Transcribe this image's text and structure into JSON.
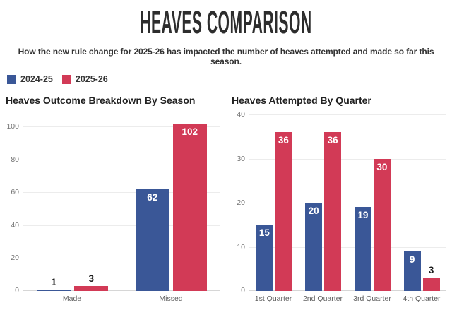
{
  "header": {
    "title": "HEAVES COMPARISON",
    "subtitle": "How the new rule change for 2025-26 has impacted the number of heaves attempted and made so far this season."
  },
  "legend": {
    "items": [
      {
        "label": "2024-25",
        "color": "#3a5797"
      },
      {
        "label": "2025-26",
        "color": "#d23a56"
      }
    ]
  },
  "chart_data": [
    {
      "type": "bar",
      "title": "Heaves Outcome Breakdown By Season",
      "categories": [
        "Made",
        "Missed"
      ],
      "series": [
        {
          "name": "2024-25",
          "color": "#3a5797",
          "values": [
            1,
            62
          ]
        },
        {
          "name": "2025-26",
          "color": "#d23a56",
          "values": [
            3,
            102
          ]
        }
      ],
      "ylim": [
        0,
        110
      ],
      "yticks": [
        0,
        20,
        40,
        60,
        80,
        100
      ],
      "grid": true,
      "legend_position": "top-left-shared",
      "value_labels": true
    },
    {
      "type": "bar",
      "title": "Heaves Attempted By Quarter",
      "categories": [
        "1st Quarter",
        "2nd Quarter",
        "3rd Quarter",
        "4th Quarter"
      ],
      "series": [
        {
          "name": "2024-25",
          "color": "#3a5797",
          "values": [
            15,
            20,
            19,
            9
          ]
        },
        {
          "name": "2025-26",
          "color": "#d23a56",
          "values": [
            36,
            36,
            30,
            3
          ]
        }
      ],
      "ylim": [
        0,
        41
      ],
      "yticks": [
        0,
        10,
        20,
        30,
        40
      ],
      "grid": true,
      "legend_position": "top-left-shared",
      "value_labels": true
    }
  ]
}
